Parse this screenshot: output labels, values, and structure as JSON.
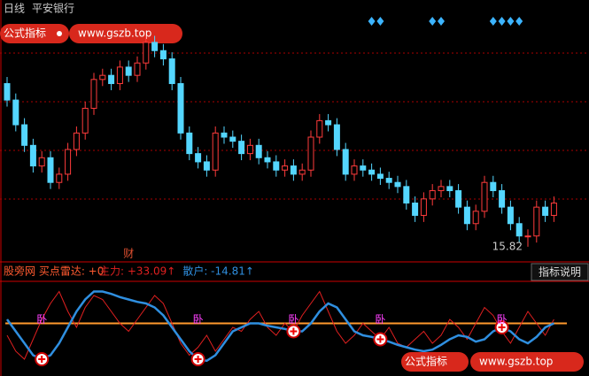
{
  "chart_data": {
    "type": "candlestick",
    "period": "日线",
    "stock": "平安银行",
    "ylim": [
      15.7,
      18.6
    ],
    "open": [
      17.8,
      17.6,
      17.3,
      17.05,
      16.8,
      16.9,
      16.6,
      16.7,
      17.0,
      17.2,
      17.5,
      17.85,
      17.9,
      17.8,
      18.0,
      17.9,
      18.05,
      18.3,
      18.2,
      18.1,
      17.8,
      17.2,
      16.95,
      16.85,
      16.75,
      17.2,
      17.15,
      17.1,
      16.95,
      17.05,
      16.9,
      16.85,
      16.75,
      16.8,
      16.7,
      16.75,
      17.15,
      17.35,
      17.3,
      17.0,
      16.7,
      16.8,
      16.75,
      16.7,
      16.65,
      16.6,
      16.55,
      16.35,
      16.2,
      16.4,
      16.5,
      16.55,
      16.5,
      16.3,
      16.1,
      16.25,
      16.6,
      16.5,
      16.3,
      16.1,
      15.95,
      15.95,
      16.3,
      16.2
    ],
    "high": [
      17.88,
      17.68,
      17.38,
      17.13,
      16.98,
      16.98,
      16.78,
      17.08,
      17.28,
      17.58,
      17.93,
      17.98,
      17.98,
      18.08,
      18.08,
      18.13,
      18.38,
      18.38,
      18.28,
      18.18,
      17.88,
      17.28,
      17.03,
      16.93,
      17.28,
      17.28,
      17.23,
      17.18,
      17.13,
      17.13,
      16.98,
      16.93,
      16.88,
      16.88,
      16.83,
      17.23,
      17.43,
      17.43,
      17.38,
      17.08,
      16.88,
      16.88,
      16.83,
      16.78,
      16.73,
      16.68,
      16.63,
      16.43,
      16.48,
      16.58,
      16.63,
      16.63,
      16.58,
      16.38,
      16.33,
      16.68,
      16.68,
      16.58,
      16.38,
      16.18,
      16.03,
      16.38,
      16.38,
      16.43
    ],
    "low": [
      17.52,
      17.22,
      16.97,
      16.72,
      16.72,
      16.52,
      16.52,
      16.62,
      16.92,
      17.12,
      17.42,
      17.77,
      17.72,
      17.72,
      17.82,
      17.82,
      17.97,
      18.12,
      18.02,
      17.72,
      17.12,
      16.87,
      16.77,
      16.67,
      16.67,
      17.07,
      17.02,
      16.87,
      16.87,
      16.82,
      16.77,
      16.67,
      16.67,
      16.62,
      16.62,
      16.67,
      17.07,
      17.22,
      16.92,
      16.62,
      16.62,
      16.67,
      16.62,
      16.57,
      16.52,
      16.47,
      16.27,
      16.12,
      16.12,
      16.32,
      16.42,
      16.42,
      16.22,
      16.02,
      16.02,
      16.17,
      16.42,
      16.22,
      16.02,
      15.87,
      15.82,
      15.87,
      16.12,
      16.12
    ],
    "close": [
      17.6,
      17.3,
      17.05,
      16.8,
      16.9,
      16.6,
      16.7,
      17.0,
      17.2,
      17.5,
      17.85,
      17.9,
      17.8,
      18.0,
      17.9,
      18.05,
      18.3,
      18.2,
      18.1,
      17.8,
      17.2,
      16.95,
      16.85,
      16.75,
      17.2,
      17.15,
      17.1,
      16.95,
      17.05,
      16.9,
      16.85,
      16.75,
      16.8,
      16.7,
      16.75,
      17.15,
      17.35,
      17.3,
      17.0,
      16.7,
      16.8,
      16.75,
      16.7,
      16.65,
      16.6,
      16.55,
      16.35,
      16.2,
      16.4,
      16.5,
      16.55,
      16.5,
      16.3,
      16.1,
      16.25,
      16.6,
      16.5,
      16.3,
      16.1,
      15.95,
      15.95,
      16.3,
      16.2,
      16.35
    ],
    "up_color": "#ff3b3b",
    "down_color": "#54d6ff",
    "diamonds": [
      42,
      43,
      49,
      50,
      56,
      57,
      58,
      59
    ],
    "event": {
      "index": 14,
      "label": "财"
    },
    "watermark": {
      "tag": "公式指标",
      "url": "www.gszb.top"
    },
    "indicator": {
      "title": "股旁网 买点雷达: +0",
      "button": "指标说明",
      "ylim": [
        0,
        100
      ],
      "level": 55,
      "level_color": "#ff9a2e",
      "series": [
        {
          "readout": "主力: +33.09↑",
          "color": "#e02020",
          "values": [
            40,
            20,
            10,
            35,
            60,
            80,
            95,
            70,
            50,
            75,
            90,
            85,
            70,
            55,
            45,
            60,
            75,
            90,
            80,
            55,
            30,
            15,
            25,
            40,
            20,
            35,
            50,
            45,
            60,
            70,
            50,
            40,
            55,
            45,
            65,
            80,
            95,
            70,
            45,
            30,
            40,
            55,
            45,
            35,
            50,
            30,
            25,
            35,
            45,
            30,
            40,
            60,
            50,
            35,
            55,
            75,
            65,
            45,
            30,
            50,
            70,
            55,
            40,
            60
          ]
        },
        {
          "readout": "散户: -14.81↑",
          "color": "#2f8fe0",
          "values": [
            60,
            45,
            30,
            15,
            10,
            15,
            30,
            50,
            70,
            85,
            95,
            95,
            92,
            88,
            85,
            82,
            80,
            75,
            65,
            50,
            35,
            20,
            10,
            8,
            15,
            30,
            45,
            50,
            55,
            55,
            52,
            50,
            48,
            45,
            45,
            55,
            70,
            80,
            75,
            60,
            45,
            40,
            38,
            35,
            32,
            28,
            25,
            22,
            20,
            22,
            28,
            35,
            40,
            38,
            32,
            35,
            45,
            50,
            45,
            35,
            30,
            38,
            50,
            55
          ]
        }
      ],
      "signals": [
        {
          "index": 4,
          "label": "卧"
        },
        {
          "index": 22,
          "label": "卧"
        },
        {
          "index": 33,
          "label": "卧"
        },
        {
          "index": 43,
          "label": "卧"
        },
        {
          "index": 57,
          "label": "卧"
        }
      ]
    }
  }
}
